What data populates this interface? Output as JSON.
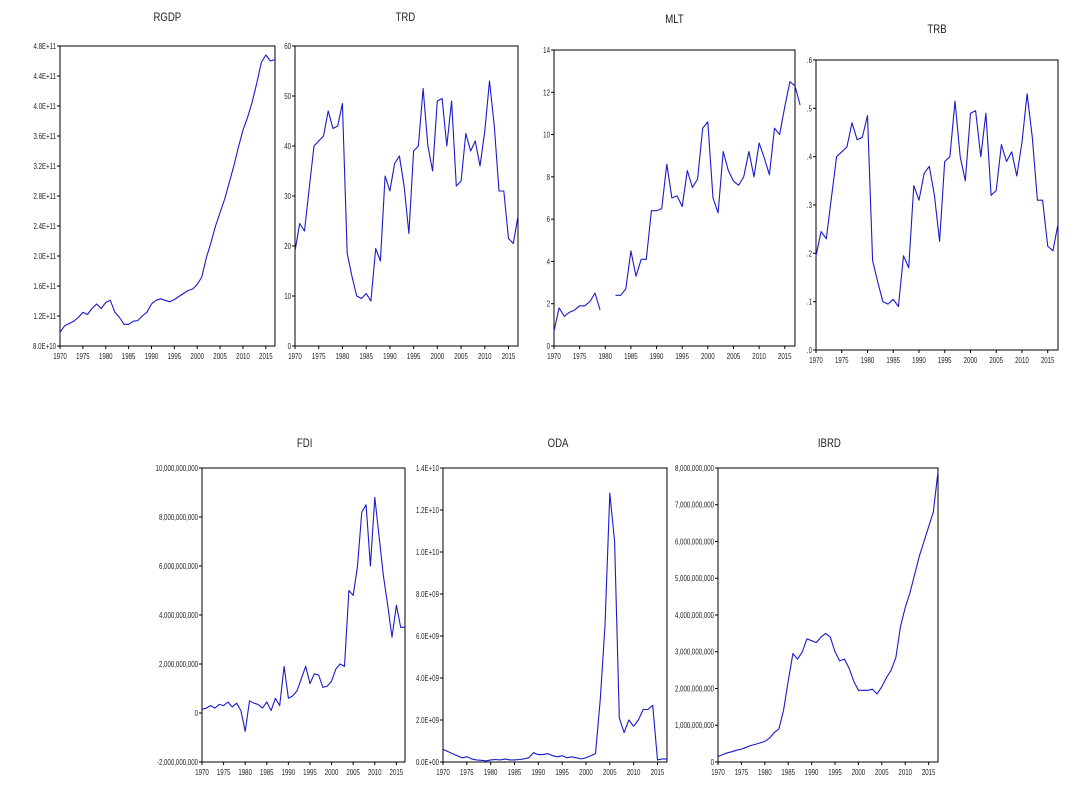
{
  "chart_data": [
    {
      "type": "line",
      "title": "RGDP",
      "xlabel": "",
      "ylabel": "",
      "xlim": [
        1970,
        2017
      ],
      "ylim": [
        80000000000.0,
        480000000000.0
      ],
      "x_ticks": [
        1970,
        1975,
        1980,
        1985,
        1990,
        1995,
        2000,
        2005,
        2010,
        2015
      ],
      "x_tick_labels": [
        "1970",
        "1975",
        "1980",
        "1985",
        "1990",
        "1995",
        "2000",
        "2005",
        "2010",
        "2015"
      ],
      "y_ticks": [
        80000000000.0,
        120000000000.0,
        160000000000.0,
        200000000000.0,
        240000000000.0,
        280000000000.0,
        320000000000.0,
        360000000000.0,
        400000000000.0,
        440000000000.0,
        480000000000.0
      ],
      "y_tick_labels": [
        "8.0E+10",
        "1.2E+11",
        "1.6E+11",
        "2.0E+11",
        "2.4E+11",
        "2.8E+11",
        "3.2E+11",
        "3.6E+11",
        "4.0E+11",
        "4.4E+11",
        "4.8E+11"
      ],
      "x_start": 1970,
      "values": [
        98000000000.0,
        107000000000.0,
        110000000000.0,
        113000000000.0,
        118000000000.0,
        125000000000.0,
        122000000000.0,
        130000000000.0,
        136000000000.0,
        130000000000.0,
        138000000000.0,
        141000000000.0,
        125000000000.0,
        118000000000.0,
        109000000000.0,
        109000000000.0,
        113000000000.0,
        114000000000.0,
        120000000000.0,
        125000000000.0,
        136000000000.0,
        141000000000.0,
        143000000000.0,
        141000000000.0,
        139000000000.0,
        142000000000.0,
        146000000000.0,
        150000000000.0,
        154000000000.0,
        156000000000.0,
        162000000000.0,
        172000000000.0,
        198000000000.0,
        218000000000.0,
        240000000000.0,
        258000000000.0,
        276000000000.0,
        298000000000.0,
        320000000000.0,
        345000000000.0,
        368000000000.0,
        385000000000.0,
        405000000000.0,
        430000000000.0,
        458000000000.0,
        468000000000.0,
        460000000000.0,
        462000000000.0
      ]
    },
    {
      "type": "line",
      "title": "TRD",
      "xlabel": "",
      "ylabel": "",
      "xlim": [
        1970,
        2017
      ],
      "ylim": [
        0,
        60
      ],
      "x_ticks": [
        1970,
        1975,
        1980,
        1985,
        1990,
        1995,
        2000,
        2005,
        2010,
        2015
      ],
      "x_tick_labels": [
        "1970",
        "1975",
        "1980",
        "1985",
        "1990",
        "1995",
        "2000",
        "2005",
        "2010",
        "2015"
      ],
      "y_ticks": [
        0,
        10,
        20,
        30,
        40,
        50,
        60
      ],
      "y_tick_labels": [
        "0",
        "10",
        "20",
        "30",
        "40",
        "50",
        "60"
      ],
      "x_start": 1970,
      "values": [
        19,
        24.5,
        23,
        31.5,
        40,
        41,
        42,
        47,
        43.5,
        44,
        48.5,
        18.5,
        14,
        10,
        9.5,
        10.5,
        9,
        19.5,
        17,
        34,
        31,
        36.5,
        38,
        32,
        22.5,
        39,
        40,
        51.5,
        40,
        35,
        49,
        49.5,
        40,
        49,
        32,
        33,
        42.5,
        39,
        41,
        36,
        43,
        53,
        44,
        31,
        31,
        21.5,
        20.5,
        26
      ]
    },
    {
      "type": "line",
      "title": "MLT",
      "xlabel": "",
      "ylabel": "",
      "xlim": [
        1970,
        2017
      ],
      "ylim": [
        0,
        14
      ],
      "x_ticks": [
        1970,
        1975,
        1980,
        1985,
        1990,
        1995,
        2000,
        2005,
        2010,
        2015
      ],
      "x_tick_labels": [
        "1970",
        "1975",
        "1980",
        "1985",
        "1990",
        "1995",
        "2000",
        "2005",
        "2010",
        "2015"
      ],
      "y_ticks": [
        0,
        2,
        4,
        6,
        8,
        10,
        12,
        14
      ],
      "y_tick_labels": [
        "0",
        "2",
        "4",
        "6",
        "8",
        "10",
        "12",
        "14"
      ],
      "x_start": 1970,
      "values": [
        0.7,
        1.8,
        1.4,
        1.6,
        1.7,
        1.9,
        1.9,
        2.1,
        2.5,
        1.7,
        null,
        null,
        2.4,
        2.4,
        2.7,
        4.5,
        3.3,
        4.1,
        4.1,
        6.4,
        6.4,
        6.5,
        8.6,
        7.0,
        7.1,
        6.6,
        8.3,
        7.5,
        7.9,
        10.3,
        10.6,
        7.0,
        6.3,
        9.2,
        8.3,
        7.8,
        7.6,
        8.0,
        9.2,
        8.0,
        9.6,
        8.9,
        8.1,
        10.3,
        10.0,
        11.3,
        12.5,
        12.3,
        11.4
      ]
    },
    {
      "type": "line",
      "title": "TRB",
      "xlabel": "",
      "ylabel": "",
      "xlim": [
        1970,
        2017
      ],
      "ylim": [
        0,
        0.6
      ],
      "x_ticks": [
        1970,
        1975,
        1980,
        1985,
        1990,
        1995,
        2000,
        2005,
        2010,
        2015
      ],
      "x_tick_labels": [
        "1970",
        "1975",
        "1980",
        "1985",
        "1990",
        "1995",
        "2000",
        "2005",
        "2010",
        "2015"
      ],
      "y_ticks": [
        0,
        0.1,
        0.2,
        0.3,
        0.4,
        0.5,
        0.6
      ],
      "y_tick_labels": [
        ".0",
        ".1",
        ".2",
        ".3",
        ".4",
        ".5",
        ".6"
      ],
      "x_start": 1970,
      "values": [
        0.195,
        0.245,
        0.23,
        0.315,
        0.4,
        0.41,
        0.42,
        0.47,
        0.435,
        0.44,
        0.485,
        0.185,
        0.14,
        0.1,
        0.095,
        0.105,
        0.09,
        0.195,
        0.17,
        0.34,
        0.31,
        0.365,
        0.38,
        0.32,
        0.225,
        0.39,
        0.4,
        0.515,
        0.4,
        0.35,
        0.49,
        0.495,
        0.4,
        0.49,
        0.32,
        0.33,
        0.425,
        0.39,
        0.41,
        0.36,
        0.43,
        0.53,
        0.44,
        0.31,
        0.31,
        0.215,
        0.205,
        0.26
      ]
    },
    {
      "type": "line",
      "title": "FDI",
      "xlabel": "",
      "ylabel": "",
      "xlim": [
        1970,
        2017
      ],
      "ylim": [
        -2000000000,
        10000000000
      ],
      "x_ticks": [
        1970,
        1975,
        1980,
        1985,
        1990,
        1995,
        2000,
        2005,
        2010,
        2015
      ],
      "x_tick_labels": [
        "1970",
        "1975",
        "1980",
        "1985",
        "1990",
        "1995",
        "2000",
        "2005",
        "2010",
        "2015"
      ],
      "y_ticks": [
        -2000000000,
        0,
        2000000000,
        4000000000,
        6000000000,
        8000000000,
        10000000000
      ],
      "y_tick_labels": [
        "-2,000,000,000",
        "0",
        "2,000,000,000",
        "4,000,000,000",
        "6,000,000,000",
        "8,000,000,000",
        "10,000,000,000"
      ],
      "x_start": 1970,
      "values": [
        150000000,
        200000000,
        300000000,
        200000000,
        350000000,
        300000000,
        450000000,
        250000000,
        400000000,
        100000000,
        -750000000,
        500000000,
        400000000,
        350000000,
        200000000,
        450000000,
        100000000,
        600000000,
        300000000,
        1900000000,
        600000000,
        700000000,
        900000000,
        1400000000,
        1900000000,
        1200000000,
        1600000000,
        1550000000,
        1050000000,
        1100000000,
        1300000000,
        1800000000,
        2000000000,
        1900000000,
        5000000000,
        4800000000,
        6000000000,
        8200000000,
        8500000000,
        6000000000,
        8800000000,
        7200000000,
        5600000000,
        4400000000,
        3100000000,
        4400000000,
        3500000000,
        3500000000
      ]
    },
    {
      "type": "line",
      "title": "ODA",
      "xlabel": "",
      "ylabel": "",
      "xlim": [
        1970,
        2017
      ],
      "ylim": [
        0,
        14000000000
      ],
      "x_ticks": [
        1970,
        1975,
        1980,
        1985,
        1990,
        1995,
        2000,
        2005,
        2010,
        2015
      ],
      "x_tick_labels": [
        "1970",
        "1975",
        "1980",
        "1985",
        "1990",
        "1995",
        "2000",
        "2005",
        "2010",
        "2015"
      ],
      "y_ticks": [
        0,
        2000000000,
        4000000000,
        6000000000,
        8000000000,
        10000000000,
        12000000000,
        14000000000
      ],
      "y_tick_labels": [
        "0.0E+00",
        "2.0E+09",
        "4.0E+09",
        "6.0E+09",
        "8.0E+09",
        "1.0E+10",
        "1.2E+10",
        "1.4E+10"
      ],
      "x_start": 1970,
      "values": [
        600000000,
        500000000,
        400000000,
        300000000,
        200000000,
        250000000,
        150000000,
        100000000,
        80000000,
        50000000,
        100000000,
        120000000,
        100000000,
        150000000,
        100000000,
        100000000,
        120000000,
        150000000,
        200000000,
        450000000,
        350000000,
        350000000,
        400000000,
        300000000,
        250000000,
        300000000,
        200000000,
        250000000,
        200000000,
        150000000,
        200000000,
        300000000,
        400000000,
        3000000000,
        6500000000,
        12800000000,
        10500000000,
        2100000000,
        1400000000,
        2000000000,
        1700000000,
        2000000000,
        2500000000,
        2500000000,
        2700000000,
        100000000,
        150000000,
        150000000
      ]
    },
    {
      "type": "line",
      "title": "IBRD",
      "xlabel": "",
      "ylabel": "",
      "xlim": [
        1970,
        2017
      ],
      "ylim": [
        0,
        8000000000
      ],
      "x_ticks": [
        1970,
        1975,
        1980,
        1985,
        1990,
        1995,
        2000,
        2005,
        2010,
        2015
      ],
      "x_tick_labels": [
        "1970",
        "1975",
        "1980",
        "1985",
        "1990",
        "1995",
        "2000",
        "2005",
        "2010",
        "2015"
      ],
      "y_ticks": [
        0,
        1000000000,
        2000000000,
        3000000000,
        4000000000,
        5000000000,
        6000000000,
        7000000000,
        8000000000
      ],
      "y_tick_labels": [
        "0",
        "1,000,000,000",
        "2,000,000,000",
        "3,000,000,000",
        "4,000,000,000",
        "5,000,000,000",
        "6,000,000,000",
        "7,000,000,000",
        "8,000,000,000"
      ],
      "x_start": 1970,
      "values": [
        150000000,
        200000000,
        250000000,
        280000000,
        320000000,
        350000000,
        400000000,
        450000000,
        480000000,
        520000000,
        560000000,
        650000000,
        800000000,
        900000000,
        1400000000,
        2200000000,
        2950000000,
        2800000000,
        3000000000,
        3350000000,
        3300000000,
        3250000000,
        3400000000,
        3500000000,
        3400000000,
        3000000000,
        2750000000,
        2800000000,
        2550000000,
        2200000000,
        1950000000,
        1950000000,
        1950000000,
        1980000000,
        1850000000,
        2050000000,
        2300000000,
        2500000000,
        2850000000,
        3700000000,
        4200000000,
        4600000000,
        5100000000,
        5600000000,
        6000000000,
        6400000000,
        6800000000,
        7900000000
      ]
    }
  ]
}
